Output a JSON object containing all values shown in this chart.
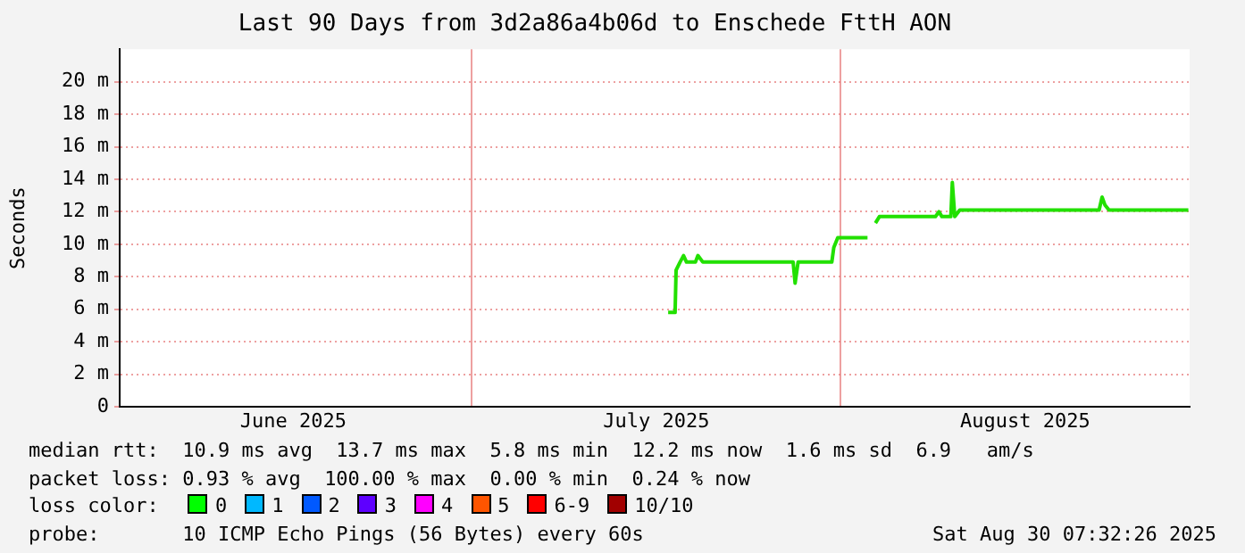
{
  "chart_data": {
    "type": "line",
    "title": "Last 90 Days from 3d2a86a4b06d to Enschede FttH AON",
    "ylabel": "Seconds",
    "x": [
      "2025-07-17T12:00",
      "2025-07-18T02:00",
      "2025-07-18T04:00",
      "2025-07-18T12:00",
      "2025-07-18T19:00",
      "2025-07-19T01:00",
      "2025-07-19T19:00",
      "2025-07-20T00:00",
      "2025-07-20T10:00",
      "2025-07-28T00:00",
      "2025-07-28T04:00",
      "2025-07-28T10:00",
      "2025-07-31T06:00",
      "2025-07-31T10:00",
      "2025-07-31T18:00",
      "2025-08-03T06:00",
      "2025-08-03T14:00",
      "2025-08-03T22:00",
      "2025-08-04T06:00",
      "2025-08-08T23:00",
      "2025-08-09T06:00",
      "2025-08-09T12:00",
      "2025-08-10T06:00",
      "2025-08-10T09:00",
      "2025-08-10T14:00",
      "2025-08-11T00:00",
      "2025-08-22T17:00",
      "2025-08-22T23:00",
      "2025-08-23T05:00",
      "2025-08-23T13:00",
      "2025-08-30T05:00"
    ],
    "series": [
      {
        "color": "#22e000",
        "values": [
          5.8,
          5.8,
          8.4,
          8.9,
          9.3,
          8.9,
          8.9,
          9.3,
          8.9,
          8.9,
          7.6,
          8.9,
          8.9,
          9.8,
          10.4,
          10.4,
          null,
          11.3,
          11.7,
          11.7,
          12.0,
          11.7,
          11.7,
          13.8,
          11.7,
          12.1,
          12.1,
          12.9,
          12.4,
          12.1,
          12.1
        ]
      }
    ],
    "xlim": [
      "2025-06-01T10:00",
      "2025-08-30T07:32"
    ],
    "xticks": [
      {
        "value": "2025-06-16T00:00",
        "label": "June 2025"
      },
      {
        "value": "2025-07-01T00:00",
        "label": null
      },
      {
        "value": "2025-07-16T12:00",
        "label": "July 2025"
      },
      {
        "value": "2025-08-01T00:00",
        "label": null
      },
      {
        "value": "2025-08-16T12:00",
        "label": "August 2025"
      }
    ],
    "ylim": [
      0,
      22
    ],
    "yticks": [
      {
        "value": 0,
        "label": "0"
      },
      {
        "value": 2,
        "label": "2 m"
      },
      {
        "value": 4,
        "label": "4 m"
      },
      {
        "value": 6,
        "label": "6 m"
      },
      {
        "value": 8,
        "label": "8 m"
      },
      {
        "value": 10,
        "label": "10 m"
      },
      {
        "value": 12,
        "label": "12 m"
      },
      {
        "value": 14,
        "label": "14 m"
      },
      {
        "value": 16,
        "label": "16 m"
      },
      {
        "value": 18,
        "label": "18 m"
      },
      {
        "value": 20,
        "label": "20 m"
      }
    ],
    "grid": true,
    "annotations": [
      "median rtt:  10.9 ms avg  13.7 ms max  5.8 ms min  12.2 ms now  1.6 ms sd  6.9   am/s",
      "packet loss: 0.93 % avg  100.00 % max  0.00 % min  0.24 % now",
      "loss color:",
      "0",
      "1",
      "2",
      "3",
      "4",
      "5",
      "6-9",
      "10/10",
      "probe:       10 ICMP Echo Pings (56 Bytes) every 60s",
      "Sat Aug 30 07:32:26 2025"
    ]
  }
}
